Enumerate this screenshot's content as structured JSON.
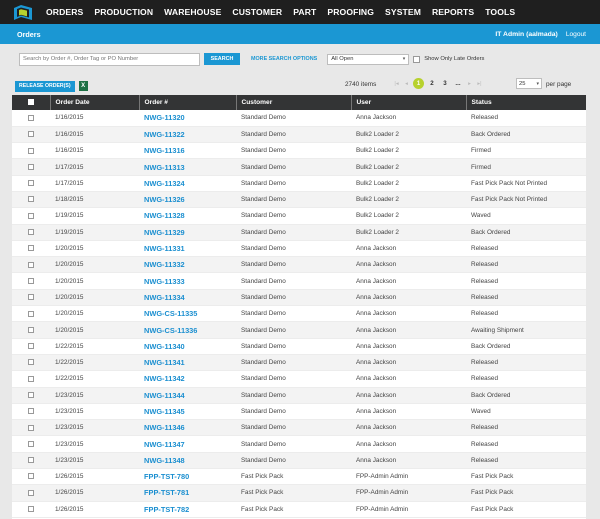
{
  "nav": {
    "logo": "app-logo",
    "items": [
      "ORDERS",
      "PRODUCTION",
      "WAREHOUSE",
      "CUSTOMER",
      "PART",
      "PROOFING",
      "SYSTEM",
      "REPORTS",
      "TOOLS"
    ]
  },
  "header": {
    "title": "Orders",
    "user": "IT Admin (aalmada)",
    "logout": "Logout"
  },
  "search": {
    "placeholder": "Search by Order #, Order Tag or PO Number",
    "button": "SEARCH",
    "more": "MORE SEARCH OPTIONS",
    "filter_value": "All Open",
    "late_label": "Show Only Late Orders"
  },
  "toolbar": {
    "release": "RELEASE ORDER(S)",
    "excel_icon": "excel-icon",
    "count": "2740 items",
    "pages": [
      "1",
      "2",
      "3",
      "..."
    ],
    "active_page": "1",
    "per_page": "25",
    "per_page_label": "per page"
  },
  "table": {
    "columns": [
      "Order Date",
      "Order #",
      "Customer",
      "User",
      "Status"
    ],
    "rows": [
      [
        "1/16/2015",
        "NWG-11320",
        "Standard Demo",
        "Anna Jackson",
        "Released"
      ],
      [
        "1/16/2015",
        "NWG-11322",
        "Standard Demo",
        "Bulk2 Loader 2",
        "Back Ordered"
      ],
      [
        "1/16/2015",
        "NWG-11316",
        "Standard Demo",
        "Bulk2 Loader 2",
        "Firmed"
      ],
      [
        "1/17/2015",
        "NWG-11313",
        "Standard Demo",
        "Bulk2 Loader 2",
        "Firmed"
      ],
      [
        "1/17/2015",
        "NWG-11324",
        "Standard Demo",
        "Bulk2 Loader 2",
        "Fast Pick Pack Not Printed"
      ],
      [
        "1/18/2015",
        "NWG-11326",
        "Standard Demo",
        "Bulk2 Loader 2",
        "Fast Pick Pack Not Printed"
      ],
      [
        "1/19/2015",
        "NWG-11328",
        "Standard Demo",
        "Bulk2 Loader 2",
        "Waved"
      ],
      [
        "1/19/2015",
        "NWG-11329",
        "Standard Demo",
        "Bulk2 Loader 2",
        "Back Ordered"
      ],
      [
        "1/20/2015",
        "NWG-11331",
        "Standard Demo",
        "Anna Jackson",
        "Released"
      ],
      [
        "1/20/2015",
        "NWG-11332",
        "Standard Demo",
        "Anna Jackson",
        "Released"
      ],
      [
        "1/20/2015",
        "NWG-11333",
        "Standard Demo",
        "Anna Jackson",
        "Released"
      ],
      [
        "1/20/2015",
        "NWG-11334",
        "Standard Demo",
        "Anna Jackson",
        "Released"
      ],
      [
        "1/20/2015",
        "NWG-CS-11335",
        "Standard Demo",
        "Anna Jackson",
        "Released"
      ],
      [
        "1/20/2015",
        "NWG-CS-11336",
        "Standard Demo",
        "Anna Jackson",
        "Awaiting Shipment"
      ],
      [
        "1/22/2015",
        "NWG-11340",
        "Standard Demo",
        "Anna Jackson",
        "Back Ordered"
      ],
      [
        "1/22/2015",
        "NWG-11341",
        "Standard Demo",
        "Anna Jackson",
        "Released"
      ],
      [
        "1/22/2015",
        "NWG-11342",
        "Standard Demo",
        "Anna Jackson",
        "Released"
      ],
      [
        "1/23/2015",
        "NWG-11344",
        "Standard Demo",
        "Anna Jackson",
        "Back Ordered"
      ],
      [
        "1/23/2015",
        "NWG-11345",
        "Standard Demo",
        "Anna Jackson",
        "Waved"
      ],
      [
        "1/23/2015",
        "NWG-11346",
        "Standard Demo",
        "Anna Jackson",
        "Released"
      ],
      [
        "1/23/2015",
        "NWG-11347",
        "Standard Demo",
        "Anna Jackson",
        "Released"
      ],
      [
        "1/23/2015",
        "NWG-11348",
        "Standard Demo",
        "Anna Jackson",
        "Released"
      ],
      [
        "1/26/2015",
        "FPP-TST-780",
        "Fast Pick Pack",
        "FPP-Admin Admin",
        "Fast Pick Pack"
      ],
      [
        "1/26/2015",
        "FPP-TST-781",
        "Fast Pick Pack",
        "FPP-Admin Admin",
        "Fast Pick Pack"
      ],
      [
        "1/26/2015",
        "FPP-TST-782",
        "Fast Pick Pack",
        "FPP-Admin Admin",
        "Fast Pick Pack"
      ]
    ]
  },
  "colors": {
    "accent": "#1b97d3",
    "nav_bg": "#1f1f1f",
    "table_header": "#333435",
    "active_page": "#b7d12e"
  }
}
